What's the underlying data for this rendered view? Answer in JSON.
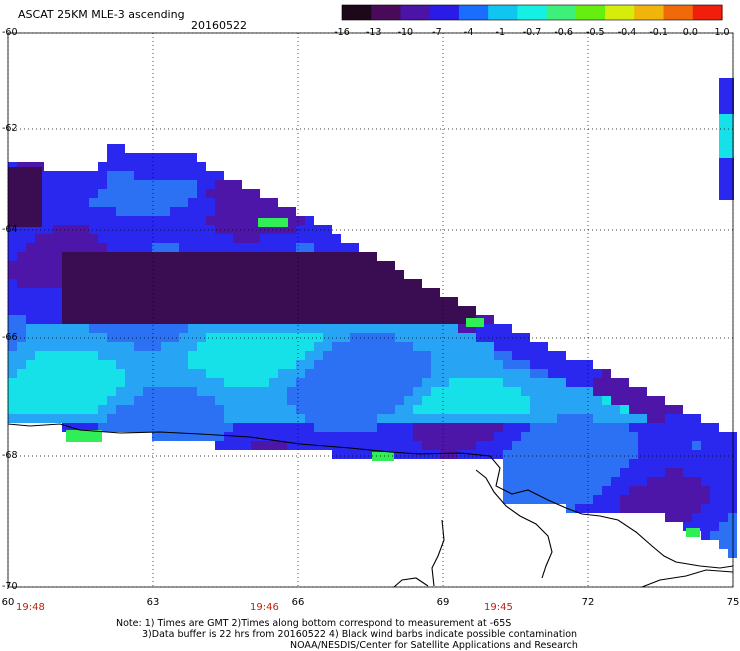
{
  "header": {
    "title": "ASCAT 25KM MLE-3 ascending",
    "date": "20160522"
  },
  "colorbar": {
    "labels": [
      "-16",
      "-13",
      "-10",
      "-7",
      "-4",
      "-1",
      "-0.7",
      "-0.6",
      "-0.5",
      "-0.4",
      "-0.1",
      "0.0",
      "1.0"
    ],
    "colors": [
      "#1c0818",
      "#4a0a5a",
      "#4b13a6",
      "#2a1ce6",
      "#1a6eff",
      "#10c6f0",
      "#14f0e4",
      "#3cf07a",
      "#66ee10",
      "#d6ec0a",
      "#f0b40a",
      "#f06a0a",
      "#f01e0a"
    ]
  },
  "axes": {
    "lat_labels": [
      "-60",
      "-62",
      "-64",
      "-66",
      "-68",
      "-70"
    ],
    "lon_labels": [
      "60",
      "63",
      "66",
      "69",
      "72",
      "75"
    ]
  },
  "times": [
    "19:48",
    "19:46",
    "19:45"
  ],
  "notes": {
    "line1": "Note: 1) Times are GMT 2)Times along bottom correspond to measurement at -65S",
    "line2": "3)Data buffer is 22 hrs from 20160522 4) Black wind barbs indicate possible contamination",
    "line3": "NOAA/NESDIS/Center for Satellite Applications and Research"
  },
  "palette": {
    "deep_purple": "#3a0c52",
    "purple": "#4d16a8",
    "blue": "#2a28ee",
    "mid_blue": "#2c70f4",
    "light_blue": "#28a4f4",
    "cyan": "#16e0e8",
    "green": "#32ee56"
  }
}
